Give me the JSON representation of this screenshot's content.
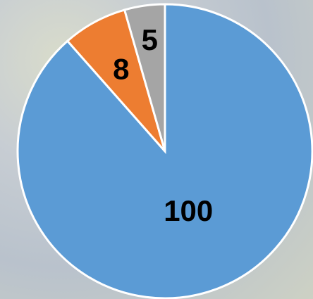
{
  "chart_data": {
    "type": "pie",
    "values": [
      100,
      8,
      5
    ],
    "colors": [
      "#5b9bd5",
      "#ed7d31",
      "#a5a5a5"
    ]
  }
}
